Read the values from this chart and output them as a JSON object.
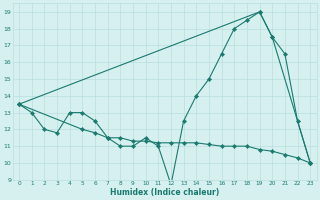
{
  "line1_x": [
    0,
    1,
    2,
    3,
    4,
    5,
    6,
    7,
    8,
    9,
    10,
    11,
    12,
    13,
    14,
    15,
    16,
    17,
    18,
    19,
    20,
    21,
    22,
    23
  ],
  "line1_y": [
    13.5,
    13.0,
    12.0,
    11.8,
    13.0,
    13.0,
    12.5,
    11.5,
    11.0,
    11.0,
    11.5,
    11.0,
    8.7,
    12.5,
    14.0,
    15.0,
    16.5,
    18.0,
    18.5,
    19.0,
    17.5,
    16.5,
    12.5,
    10.0
  ],
  "line2_x": [
    0,
    19,
    20,
    23
  ],
  "line2_y": [
    13.5,
    19.0,
    17.5,
    10.0
  ],
  "line3_x": [
    0,
    5,
    6,
    7,
    8,
    9,
    10,
    11,
    12,
    13,
    14,
    15,
    16,
    17,
    18,
    19,
    20,
    21,
    22,
    23
  ],
  "line3_y": [
    13.5,
    12.0,
    11.8,
    11.5,
    11.5,
    11.3,
    11.3,
    11.2,
    11.2,
    11.2,
    11.2,
    11.1,
    11.0,
    11.0,
    11.0,
    10.8,
    10.7,
    10.5,
    10.3,
    10.0
  ],
  "color": "#1a7a6e",
  "bg_color": "#d6f0f0",
  "grid_color": "#b8dede",
  "xlabel": "Humidex (Indice chaleur)",
  "xlim": [
    -0.5,
    23.5
  ],
  "ylim": [
    9,
    19.5
  ],
  "yticks": [
    9,
    10,
    11,
    12,
    13,
    14,
    15,
    16,
    17,
    18,
    19
  ],
  "xticks": [
    0,
    1,
    2,
    3,
    4,
    5,
    6,
    7,
    8,
    9,
    10,
    11,
    12,
    13,
    14,
    15,
    16,
    17,
    18,
    19,
    20,
    21,
    22,
    23
  ]
}
